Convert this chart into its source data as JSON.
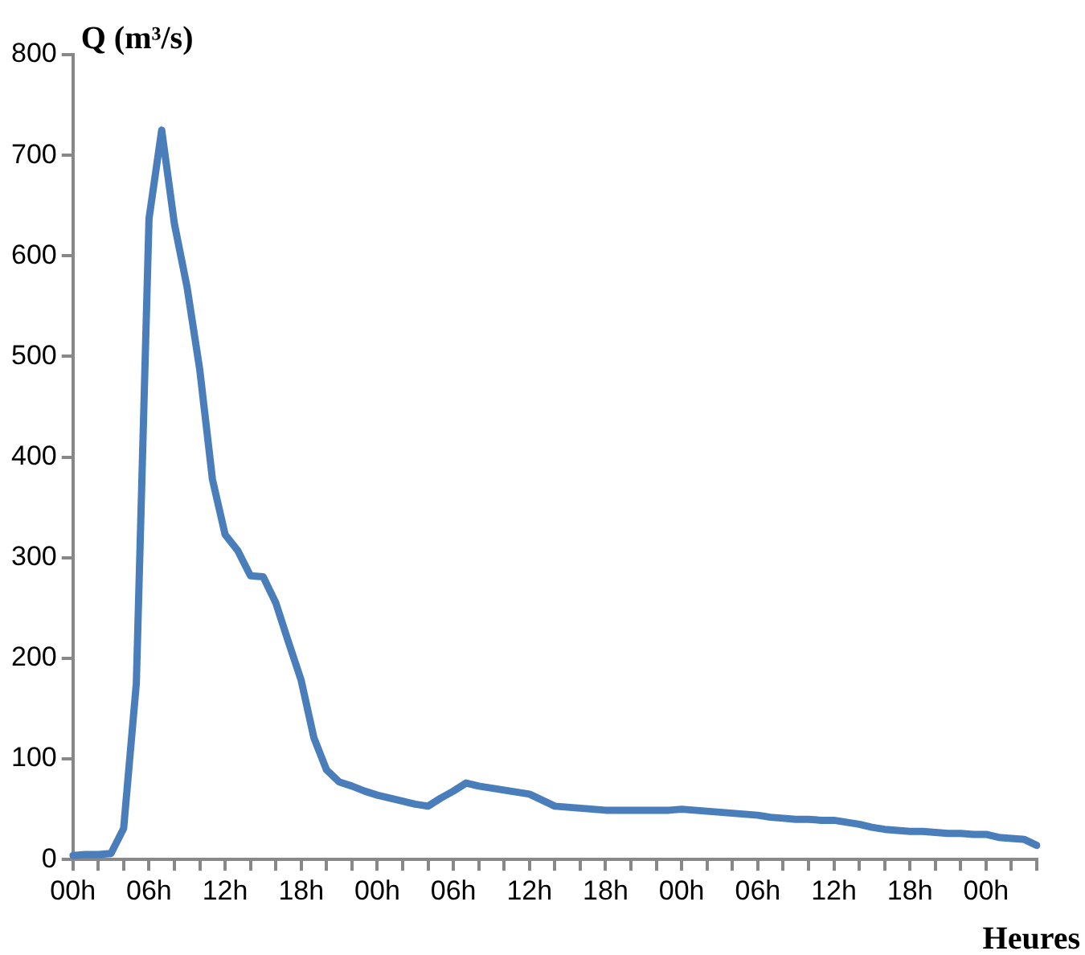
{
  "chart_data": {
    "type": "line",
    "ylabel": "Q (m³/s)",
    "xlabel": "Heures",
    "categories": [
      "00h",
      null,
      null,
      null,
      null,
      null,
      "06h",
      null,
      null,
      null,
      null,
      null,
      "12h",
      null,
      null,
      null,
      null,
      null,
      "18h",
      null,
      null,
      null,
      null,
      null,
      "00h",
      null,
      null,
      null,
      null,
      null,
      "06h",
      null,
      null,
      null,
      null,
      null,
      "12h",
      null,
      null,
      null,
      null,
      null,
      "18h",
      null,
      null,
      null,
      null,
      null,
      "00h",
      null,
      null,
      null,
      null,
      null,
      "06h",
      null,
      null,
      null,
      null,
      null,
      "12h",
      null,
      null,
      null,
      null,
      null,
      "18h",
      null,
      null,
      null,
      null,
      null,
      "00h",
      null,
      null,
      null,
      null
    ],
    "series": [
      {
        "color": "#4a7ebb",
        "values": [
          4,
          5,
          5,
          6,
          31,
          175,
          637,
          725,
          632,
          569,
          487,
          378,
          323,
          307,
          282,
          281,
          255,
          216,
          178,
          121,
          89,
          77,
          73,
          68,
          64,
          61,
          58,
          55,
          53,
          61,
          68,
          76,
          73,
          71,
          69,
          67,
          65,
          59,
          53,
          52,
          51,
          50,
          49,
          49,
          49,
          49,
          49,
          49,
          50,
          49,
          48,
          47,
          46,
          45,
          44,
          42,
          41,
          40,
          40,
          39,
          39,
          37,
          35,
          32,
          30,
          29,
          28,
          28,
          27,
          26,
          26,
          25,
          25,
          22,
          21,
          20,
          14
        ]
      }
    ],
    "ylim": [
      0,
      800
    ],
    "yticks": [
      0,
      100,
      200,
      300,
      400,
      500,
      600,
      700,
      800
    ],
    "grid": false,
    "legend": false,
    "marker": "none",
    "line_style": "solid"
  }
}
